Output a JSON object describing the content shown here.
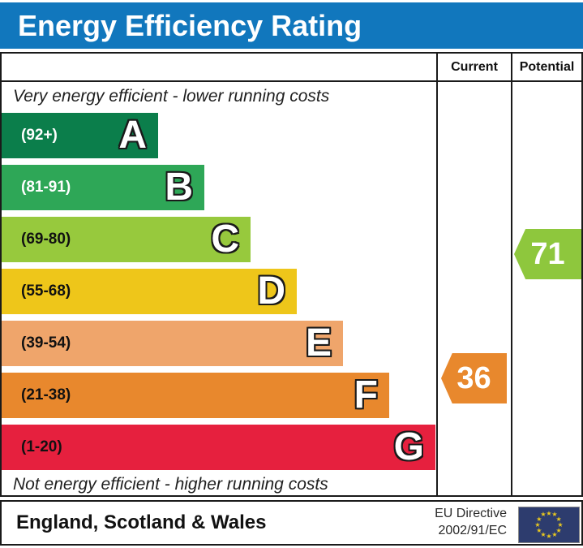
{
  "title": "Energy Efficiency Rating",
  "columns": {
    "current": "Current",
    "potential": "Potential"
  },
  "captions": {
    "top": "Very energy efficient - lower running costs",
    "bottom": "Not energy efficient - higher running costs"
  },
  "chart_data": {
    "type": "bar",
    "subtype": "epc-energy-efficiency-rating",
    "scale_range": [
      1,
      100
    ],
    "bands": [
      {
        "letter": "A",
        "range_label": "(92+)",
        "range_min": 92,
        "range_max": 100,
        "color": "#0b7e4b",
        "label_color": "#ffffff"
      },
      {
        "letter": "B",
        "range_label": "(81-91)",
        "range_min": 81,
        "range_max": 91,
        "color": "#2ea757",
        "label_color": "#ffffff"
      },
      {
        "letter": "C",
        "range_label": "(69-80)",
        "range_min": 69,
        "range_max": 80,
        "color": "#97c93d",
        "label_color": "#111111"
      },
      {
        "letter": "D",
        "range_label": "(55-68)",
        "range_min": 55,
        "range_max": 68,
        "color": "#eec61a",
        "label_color": "#111111"
      },
      {
        "letter": "E",
        "range_label": "(39-54)",
        "range_min": 39,
        "range_max": 54,
        "color": "#efa56b",
        "label_color": "#111111"
      },
      {
        "letter": "F",
        "range_label": "(21-38)",
        "range_min": 21,
        "range_max": 38,
        "color": "#e8882d",
        "label_color": "#111111"
      },
      {
        "letter": "G",
        "range_label": "(1-20)",
        "range_min": 1,
        "range_max": 20,
        "color": "#e6203e",
        "label_color": "#111111"
      }
    ],
    "ratings": {
      "current": {
        "value": 36,
        "color": "#e8882d"
      },
      "potential": {
        "value": 71,
        "color": "#8ec73d"
      }
    }
  },
  "footer": {
    "region": "England, Scotland & Wales",
    "directive_line1": "EU Directive",
    "directive_line2": "2002/91/EC"
  },
  "theme": {
    "title_bar_color": "#1177bd",
    "border_color": "#1a1a1a",
    "eu_flag_blue": "#2d3c6e",
    "eu_star_color": "#e9c81f"
  }
}
